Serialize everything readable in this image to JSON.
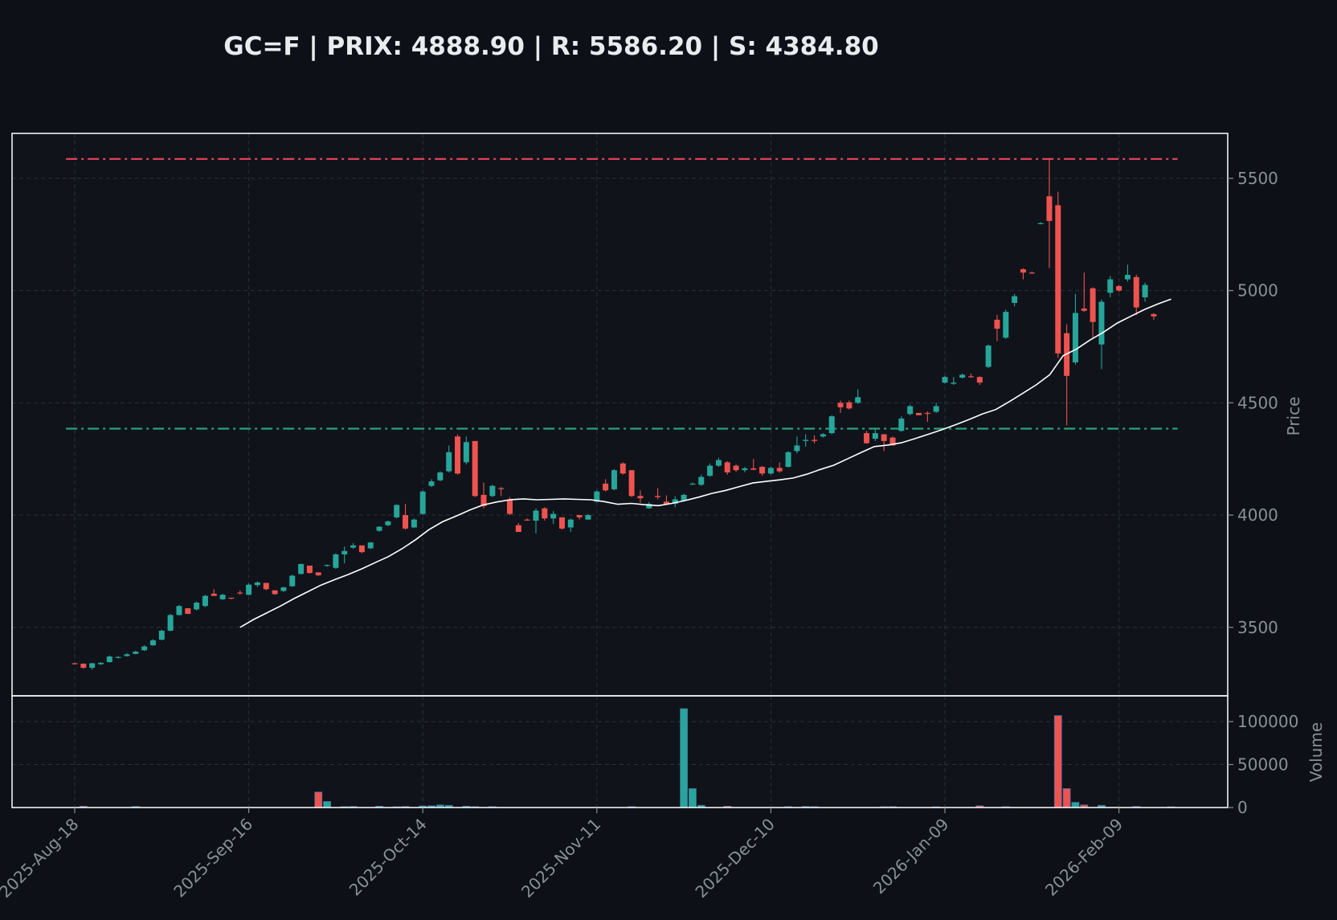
{
  "title": "GC=F | PRIX: 4888.90 | R: 5586.20 | S: 4384.80",
  "chart_data": {
    "type": "candlestick",
    "ticker": "GC=F",
    "last_price": 4888.9,
    "resistance": 5586.2,
    "support": 4384.8,
    "ylabel": "Price",
    "volume_label": "Volume",
    "price_ylim": [
      3195,
      5700
    ],
    "volume_ylim": [
      0,
      130000
    ],
    "price_ticks": [
      3500,
      4000,
      4500,
      5000,
      5500
    ],
    "volume_ticks": [
      0,
      50000,
      100000
    ],
    "volume_tick_labels": [
      "0",
      "50000",
      "100000"
    ],
    "x_tick_labels": [
      "2025-Aug-18",
      "2025-Sep-16",
      "2025-Oct-14",
      "2025-Nov-11",
      "2025-Dec-10",
      "2026-Jan-09",
      "2026-Feb-09"
    ],
    "x_tick_index": [
      0,
      20,
      40,
      60,
      80,
      100,
      120
    ],
    "n_candles": 127,
    "grid": true,
    "colors": {
      "up": "#26a69a",
      "down": "#ef5350",
      "resistance": "#e94560",
      "support": "#26a17b",
      "ma": "#ffffff",
      "background": "#10131a",
      "axis": "#ffffff",
      "grid": "#2c303a",
      "tick": "#8a8f98"
    },
    "ohlc": [
      [
        3340,
        3342,
        3336,
        3338
      ],
      [
        3338,
        3340,
        3315,
        3320
      ],
      [
        3320,
        3342,
        3312,
        3340
      ],
      [
        3336,
        3345,
        3332,
        3342
      ],
      [
        3345,
        3375,
        3344,
        3370
      ],
      [
        3365,
        3372,
        3362,
        3368
      ],
      [
        3372,
        3385,
        3370,
        3380
      ],
      [
        3382,
        3396,
        3380,
        3392
      ],
      [
        3398,
        3420,
        3395,
        3415
      ],
      [
        3420,
        3448,
        3418,
        3442
      ],
      [
        3445,
        3490,
        3442,
        3485
      ],
      [
        3485,
        3560,
        3482,
        3555
      ],
      [
        3555,
        3600,
        3552,
        3595
      ],
      [
        3585,
        3580,
        3572,
        3560
      ],
      [
        3580,
        3615,
        3575,
        3610
      ],
      [
        3595,
        3645,
        3590,
        3640
      ],
      [
        3650,
        3670,
        3640,
        3640
      ],
      [
        3625,
        3650,
        3622,
        3645
      ],
      [
        3632,
        3630,
        3625,
        3630
      ],
      [
        3655,
        3665,
        3645,
        3652
      ],
      [
        3645,
        3695,
        3643,
        3690
      ],
      [
        3688,
        3705,
        3680,
        3700
      ],
      [
        3698,
        3690,
        3665,
        3670
      ],
      [
        3665,
        3662,
        3645,
        3648
      ],
      [
        3662,
        3682,
        3658,
        3678
      ],
      [
        3683,
        3735,
        3680,
        3730
      ],
      [
        3738,
        3785,
        3735,
        3782
      ],
      [
        3775,
        3770,
        3740,
        3742
      ],
      [
        3745,
        3740,
        3728,
        3732
      ],
      [
        3775,
        3780,
        3770,
        3778
      ],
      [
        3765,
        3830,
        3760,
        3825
      ],
      [
        3825,
        3860,
        3785,
        3840
      ],
      [
        3855,
        3875,
        3850,
        3865
      ],
      [
        3865,
        3860,
        3830,
        3835
      ],
      [
        3852,
        3880,
        3848,
        3878
      ],
      [
        3930,
        3950,
        3925,
        3948
      ],
      [
        3955,
        3975,
        3950,
        3972
      ],
      [
        3990,
        4048,
        3985,
        4045
      ],
      [
        4000,
        4050,
        3935,
        3940
      ],
      [
        3945,
        3985,
        3942,
        3980
      ],
      [
        4005,
        4110,
        4000,
        4105
      ],
      [
        4130,
        4160,
        4125,
        4150
      ],
      [
        4155,
        4195,
        4150,
        4190
      ],
      [
        4195,
        4310,
        4190,
        4280
      ],
      [
        4350,
        4360,
        4180,
        4185
      ],
      [
        4235,
        4350,
        4225,
        4325
      ],
      [
        4330,
        4325,
        4080,
        4085
      ],
      [
        4090,
        4145,
        4030,
        4040
      ],
      [
        4085,
        4135,
        4080,
        4130
      ],
      [
        4120,
        4125,
        4085,
        4118
      ],
      [
        4070,
        4080,
        4000,
        4005
      ],
      [
        3955,
        3965,
        3925,
        3925
      ],
      [
        3980,
        3985,
        3975,
        3978
      ],
      [
        3975,
        4030,
        3918,
        4020
      ],
      [
        4030,
        4035,
        3975,
        3985
      ],
      [
        3985,
        4018,
        3960,
        4005
      ],
      [
        3990,
        3980,
        3935,
        3940
      ],
      [
        3945,
        3985,
        3925,
        3980
      ],
      [
        4000,
        3998,
        3980,
        3990
      ],
      [
        3980,
        4005,
        3978,
        4000
      ],
      [
        4060,
        4110,
        4055,
        4105
      ],
      [
        4140,
        4160,
        4105,
        4110
      ],
      [
        4115,
        4205,
        4110,
        4200
      ],
      [
        4230,
        4235,
        4180,
        4185
      ],
      [
        4200,
        4195,
        4080,
        4085
      ],
      [
        4085,
        4110,
        4055,
        4075
      ],
      [
        4030,
        4058,
        4028,
        4050
      ],
      [
        4085,
        4120,
        4070,
        4080
      ],
      [
        4060,
        4088,
        4050,
        4050
      ],
      [
        4050,
        4085,
        4035,
        4070
      ],
      [
        4065,
        4095,
        4060,
        4090
      ],
      [
        4140,
        4145,
        4135,
        4140
      ],
      [
        4135,
        4180,
        4130,
        4170
      ],
      [
        4175,
        4230,
        4170,
        4220
      ],
      [
        4220,
        4255,
        4215,
        4245
      ],
      [
        4235,
        4240,
        4180,
        4190
      ],
      [
        4220,
        4225,
        4192,
        4200
      ],
      [
        4200,
        4215,
        4190,
        4208
      ],
      [
        4208,
        4250,
        4200,
        4202
      ],
      [
        4215,
        4218,
        4175,
        4185
      ],
      [
        4185,
        4215,
        4180,
        4210
      ],
      [
        4210,
        4235,
        4188,
        4195
      ],
      [
        4215,
        4285,
        4212,
        4280
      ],
      [
        4285,
        4350,
        4275,
        4310
      ],
      [
        4330,
        4360,
        4305,
        4335
      ],
      [
        4335,
        4355,
        4320,
        4330
      ],
      [
        4350,
        4365,
        4345,
        4360
      ],
      [
        4365,
        4445,
        4360,
        4440
      ],
      [
        4500,
        4510,
        4455,
        4480
      ],
      [
        4502,
        4510,
        4470,
        4475
      ],
      [
        4500,
        4560,
        4495,
        4525
      ],
      [
        4365,
        4375,
        4318,
        4320
      ],
      [
        4340,
        4385,
        4330,
        4365
      ],
      [
        4360,
        4350,
        4285,
        4330
      ],
      [
        4345,
        4350,
        4310,
        4310
      ],
      [
        4375,
        4440,
        4370,
        4430
      ],
      [
        4450,
        4492,
        4445,
        4485
      ],
      [
        4455,
        4455,
        4444,
        4445
      ],
      [
        4455,
        4462,
        4415,
        4452
      ],
      [
        4460,
        4500,
        4455,
        4485
      ],
      [
        4590,
        4620,
        4585,
        4615
      ],
      [
        4585,
        4615,
        4580,
        4590
      ],
      [
        4612,
        4630,
        4608,
        4625
      ],
      [
        4618,
        4630,
        4612,
        4615
      ],
      [
        4615,
        4618,
        4580,
        4590
      ],
      [
        4660,
        4760,
        4655,
        4755
      ],
      [
        4870,
        4892,
        4775,
        4830
      ],
      [
        4790,
        4915,
        4785,
        4905
      ],
      [
        4945,
        4985,
        4930,
        4975
      ],
      [
        5095,
        5100,
        5050,
        5080
      ],
      [
        5080,
        5085,
        5075,
        5078
      ],
      [
        5300,
        5305,
        5295,
        5300
      ],
      [
        5420,
        5590,
        5100,
        5310
      ],
      [
        5380,
        5440,
        4700,
        4720
      ],
      [
        4810,
        4850,
        4400,
        4620
      ],
      [
        4680,
        4985,
        4670,
        4900
      ],
      [
        4920,
        5080,
        4905,
        4910
      ],
      [
        5010,
        5015,
        4790,
        4860
      ],
      [
        4760,
        4960,
        4650,
        4950
      ],
      [
        4990,
        5065,
        4970,
        5050
      ],
      [
        5020,
        5025,
        4995,
        5000
      ],
      [
        5050,
        5115,
        5040,
        5070
      ],
      [
        5060,
        5070,
        4890,
        4925
      ],
      [
        4970,
        5035,
        4950,
        5025
      ],
      [
        4895,
        4900,
        4870,
        4885
      ]
    ],
    "moving_average": [
      [
        19,
        3500
      ],
      [
        21,
        3535
      ],
      [
        23,
        3565
      ],
      [
        25,
        3595
      ],
      [
        27,
        3628
      ],
      [
        29,
        3658
      ],
      [
        31,
        3688
      ],
      [
        33,
        3712
      ],
      [
        35,
        3735
      ],
      [
        37,
        3760
      ],
      [
        39,
        3788
      ],
      [
        41,
        3815
      ],
      [
        43,
        3850
      ],
      [
        45,
        3890
      ],
      [
        47,
        3935
      ],
      [
        49,
        3970
      ],
      [
        51,
        3995
      ],
      [
        53,
        4022
      ],
      [
        55,
        4045
      ],
      [
        57,
        4058
      ],
      [
        59,
        4068
      ],
      [
        61,
        4072
      ],
      [
        63,
        4068
      ],
      [
        65,
        4070
      ],
      [
        67,
        4072
      ],
      [
        69,
        4070
      ],
      [
        71,
        4068
      ],
      [
        73,
        4060
      ],
      [
        75,
        4048
      ],
      [
        77,
        4052
      ],
      [
        79,
        4046
      ],
      [
        81,
        4042
      ],
      [
        83,
        4052
      ],
      [
        85,
        4065
      ],
      [
        87,
        4080
      ],
      [
        89,
        4097
      ],
      [
        91,
        4110
      ],
      [
        93,
        4127
      ],
      [
        95,
        4143
      ],
      [
        97,
        4150
      ],
      [
        99,
        4157
      ],
      [
        101,
        4165
      ],
      [
        103,
        4182
      ],
      [
        105,
        4203
      ],
      [
        107,
        4222
      ],
      [
        109,
        4250
      ],
      [
        111,
        4278
      ],
      [
        113,
        4305
      ],
      [
        115,
        4312
      ],
      [
        117,
        4322
      ],
      [
        119,
        4340
      ],
      [
        121,
        4360
      ],
      [
        123,
        4380
      ],
      [
        125,
        4402
      ],
      [
        127,
        4425
      ],
      [
        129,
        4450
      ],
      [
        131,
        4470
      ],
      [
        133,
        4505
      ],
      [
        135,
        4542
      ],
      [
        137,
        4580
      ],
      [
        139,
        4625
      ],
      [
        141,
        4710
      ],
      [
        143,
        4740
      ],
      [
        145,
        4780
      ],
      [
        147,
        4815
      ],
      [
        149,
        4855
      ],
      [
        151,
        4885
      ],
      [
        153,
        4915
      ],
      [
        155,
        4940
      ],
      [
        157,
        4962
      ]
    ],
    "volume": [
      [
        0,
        0
      ],
      [
        1,
        1500
      ],
      [
        3,
        0
      ],
      [
        7,
        1200
      ],
      [
        27,
        0
      ],
      [
        28,
        18000
      ],
      [
        29,
        7000
      ],
      [
        31,
        1000
      ],
      [
        32,
        1200
      ],
      [
        35,
        1500
      ],
      [
        37,
        900
      ],
      [
        38,
        1200
      ],
      [
        40,
        1800
      ],
      [
        41,
        2000
      ],
      [
        42,
        3000
      ],
      [
        43,
        2500
      ],
      [
        45,
        1500
      ],
      [
        46,
        1000
      ],
      [
        48,
        1000
      ],
      [
        64,
        1000
      ],
      [
        70,
        115000
      ],
      [
        71,
        22000
      ],
      [
        72,
        2500
      ],
      [
        75,
        1500
      ],
      [
        82,
        1000
      ],
      [
        84,
        1200
      ],
      [
        85,
        1000
      ],
      [
        93,
        900
      ],
      [
        94,
        1000
      ],
      [
        99,
        800
      ],
      [
        104,
        2000
      ],
      [
        107,
        900
      ],
      [
        113,
        107000
      ],
      [
        114,
        22000
      ],
      [
        115,
        6000
      ],
      [
        116,
        3000
      ],
      [
        118,
        2500
      ],
      [
        122,
        1200
      ],
      [
        126,
        800
      ]
    ]
  }
}
